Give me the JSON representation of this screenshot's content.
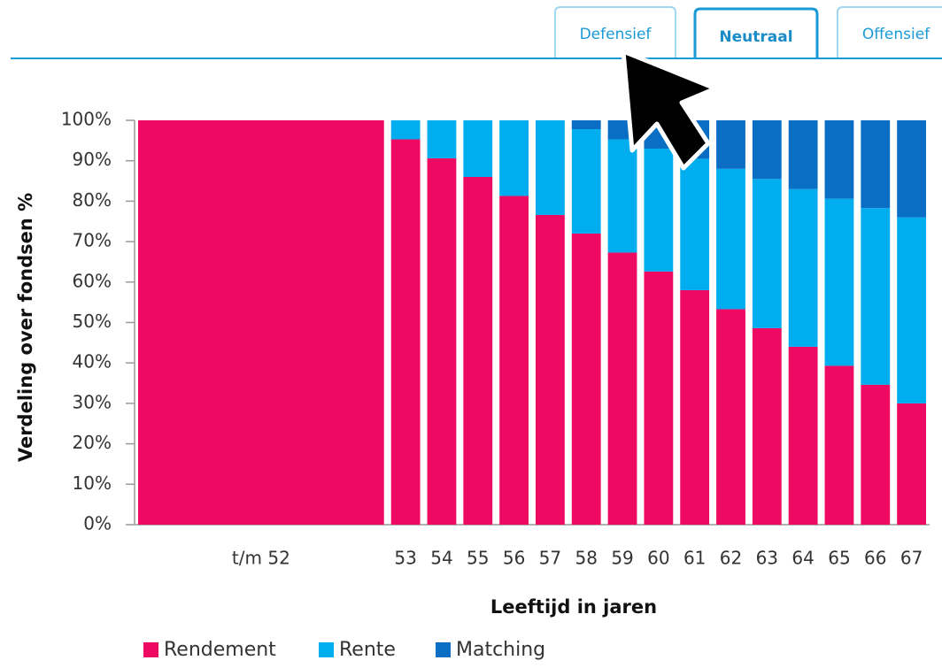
{
  "tabs": [
    "Defensief",
    "Neutraal",
    "Offensief"
  ],
  "active_tab": "Neutraal",
  "chart_data": {
    "type": "stacked-bar",
    "x_label": "Leeftijd in jaren",
    "y_label": "Verdeling over fondsen %",
    "categories": [
      "t/m 52",
      "53",
      "54",
      "55",
      "56",
      "57",
      "58",
      "59",
      "60",
      "61",
      "62",
      "63",
      "64",
      "65",
      "66",
      "67"
    ],
    "series": [
      {
        "name": "Rendement",
        "color": "#ee0a62",
        "values": [
          100,
          95.3,
          90.6,
          86,
          81.3,
          76.6,
          72,
          67.3,
          62.6,
          58,
          53.3,
          48.6,
          44,
          39.3,
          34.6,
          30
        ]
      },
      {
        "name": "Rente",
        "color": "#00aeef",
        "values": [
          0,
          4.7,
          9.4,
          14,
          18.7,
          23.4,
          25.8,
          28,
          30.4,
          32.5,
          34.7,
          36.9,
          39,
          41.3,
          43.7,
          46
        ]
      },
      {
        "name": "Matching",
        "color": "#0a6fc4",
        "values": [
          0,
          0,
          0,
          0,
          0,
          0,
          2.2,
          4.7,
          7,
          9.5,
          12,
          14.5,
          17,
          19.4,
          21.7,
          24
        ]
      }
    ],
    "ylim": [
      0,
      100
    ],
    "yticks": [
      {
        "value": 0,
        "label": "0%"
      },
      {
        "value": 10,
        "label": "10%"
      },
      {
        "value": 20,
        "label": "20%"
      },
      {
        "value": 30,
        "label": "30%"
      },
      {
        "value": 40,
        "label": "40%"
      },
      {
        "value": 50,
        "label": "50%"
      },
      {
        "value": 60,
        "label": "60%"
      },
      {
        "value": 70,
        "label": "70%"
      },
      {
        "value": 80,
        "label": "80%"
      },
      {
        "value": 90,
        "label": "90%"
      },
      {
        "value": 100,
        "label": "100%"
      }
    ],
    "grid": false,
    "legend": "bottom"
  }
}
